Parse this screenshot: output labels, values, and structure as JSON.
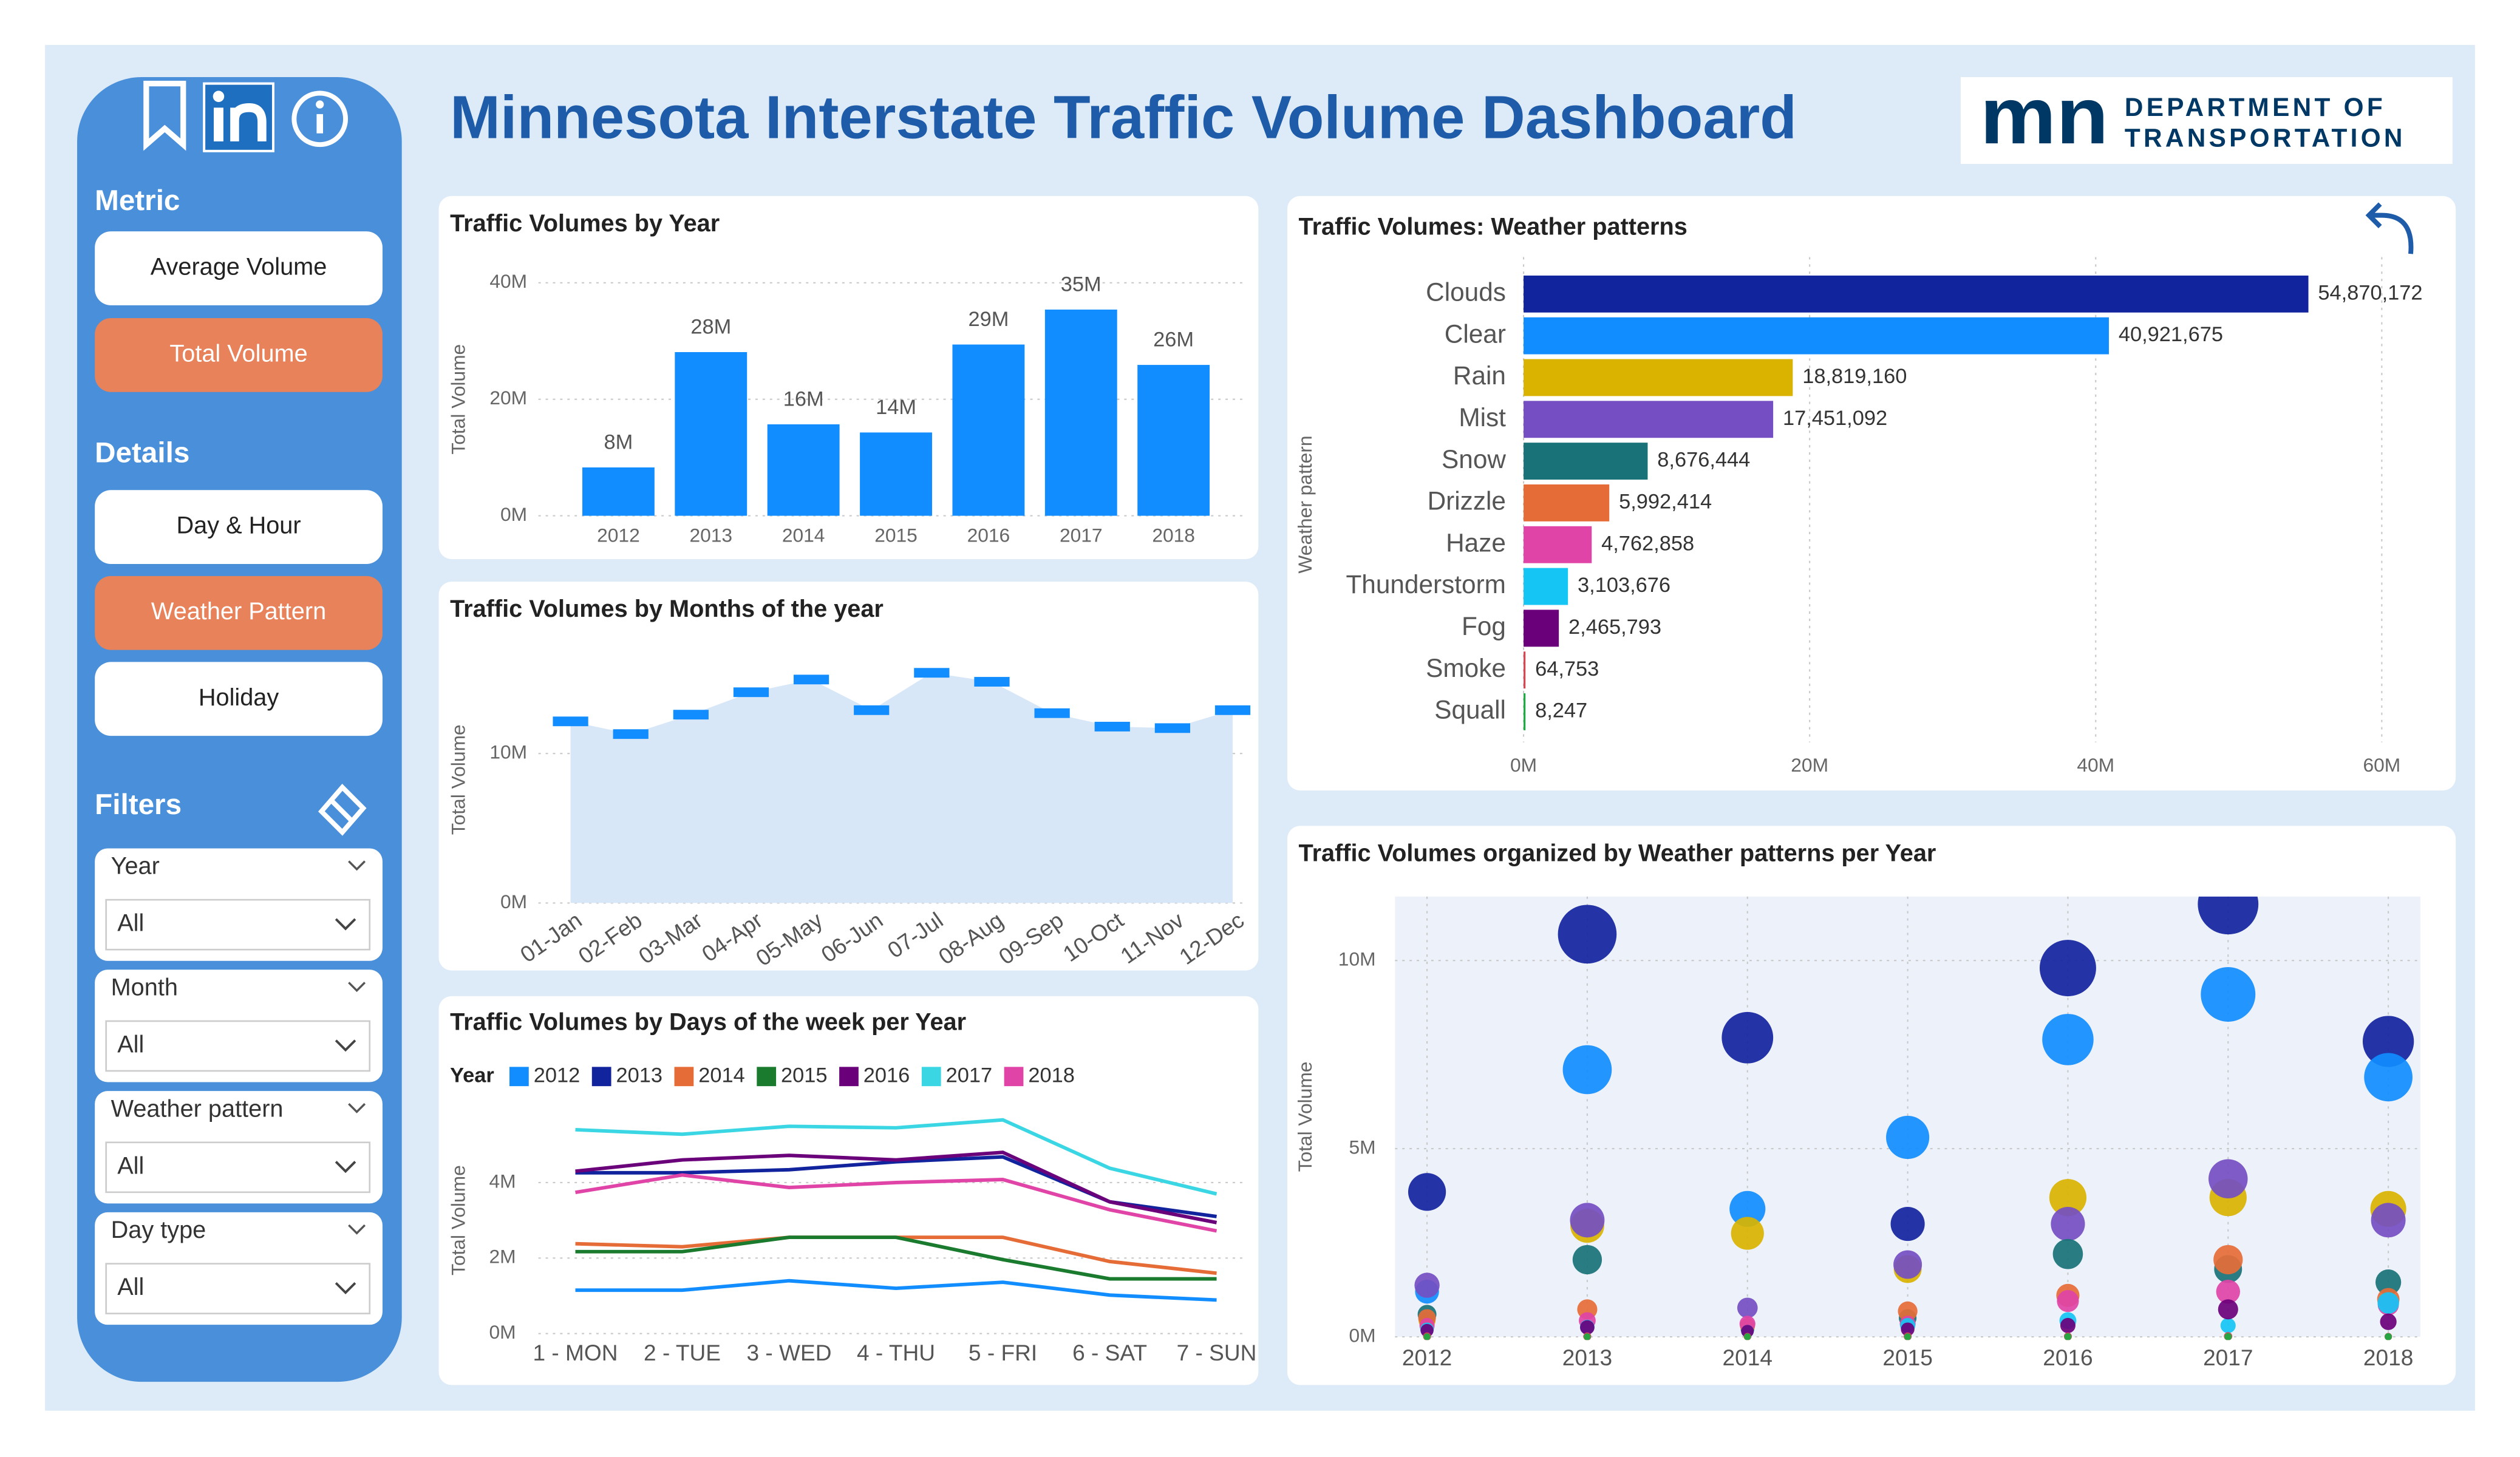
{
  "header": {
    "title": "Minnesota Interstate Traffic Volume Dashboard",
    "logo": {
      "mark": "mn",
      "line1": "DEPARTMENT OF",
      "line2": "TRANSPORTATION"
    }
  },
  "sidebar": {
    "metric": {
      "title": "Metric",
      "options": [
        "Average Volume",
        "Total Volume"
      ],
      "selected": 1
    },
    "details": {
      "title": "Details",
      "options": [
        "Day & Hour",
        "Weather Pattern",
        "Holiday"
      ],
      "selected": 1
    },
    "filters": {
      "title": "Filters",
      "slicers": [
        {
          "label": "Year",
          "value": "All"
        },
        {
          "label": "Month",
          "value": "All"
        },
        {
          "label": "Weather pattern",
          "value": "All"
        },
        {
          "label": "Day type",
          "value": "All"
        }
      ]
    }
  },
  "chart_data": [
    {
      "type": "bar",
      "title": "Traffic Volumes by Year",
      "y_label": "Total Volume",
      "categories": [
        "2012",
        "2013",
        "2014",
        "2015",
        "2016",
        "2017",
        "2018"
      ],
      "values": [
        8300000,
        28100000,
        15700000,
        14300000,
        29400000,
        35400000,
        25900000
      ],
      "value_labels": [
        "8M",
        "28M",
        "16M",
        "14M",
        "29M",
        "35M",
        "26M"
      ],
      "color": "#118DFF",
      "ylim": [
        0,
        40000000
      ],
      "yticks": [
        {
          "value": 0,
          "label": "0M"
        },
        {
          "value": 20000000,
          "label": "20M"
        },
        {
          "value": 40000000,
          "label": "40M"
        }
      ],
      "grid": true
    },
    {
      "type": "area",
      "title": "Traffic Volumes by Months of the year",
      "y_label": "Total Volume",
      "categories": [
        "01-Jan",
        "02-Feb",
        "03-Mar",
        "04-Apr",
        "05-May",
        "06-Jun",
        "07-Jul",
        "08-Aug",
        "09-Sep",
        "10-Oct",
        "11-Nov",
        "12-Dec"
      ],
      "values": [
        12150000,
        11300000,
        12600000,
        14100000,
        14950000,
        12900000,
        15400000,
        14800000,
        12700000,
        11800000,
        11700000,
        12900000
      ],
      "color": "#118DFF",
      "ylim": [
        0,
        16500000
      ],
      "yticks": [
        {
          "value": 0,
          "label": "0M"
        },
        {
          "value": 10000000,
          "label": "10M"
        }
      ],
      "grid": true
    },
    {
      "type": "line",
      "title": "Traffic Volumes by Days of the week per Year",
      "y_label": "Total Volume",
      "legend_title": "Year",
      "categories": [
        "1 - MON",
        "2 - TUE",
        "3 - WED",
        "4 - THU",
        "5 - FRI",
        "6 - SAT",
        "7 - SUN"
      ],
      "series": [
        {
          "name": "2012",
          "color": "#118DFF",
          "values": [
            1150000,
            1150000,
            1400000,
            1200000,
            1360000,
            1020000,
            890000
          ]
        },
        {
          "name": "2013",
          "color": "#12239E",
          "values": [
            4260000,
            4260000,
            4340000,
            4550000,
            4680000,
            3490000,
            3100000
          ]
        },
        {
          "name": "2014",
          "color": "#E66C37",
          "values": [
            2380000,
            2300000,
            2550000,
            2550000,
            2550000,
            1910000,
            1600000
          ]
        },
        {
          "name": "2015",
          "color": "#1A7A2E",
          "values": [
            2170000,
            2170000,
            2550000,
            2550000,
            1960000,
            1450000,
            1450000
          ]
        },
        {
          "name": "2016",
          "color": "#6B007B",
          "values": [
            4300000,
            4600000,
            4720000,
            4600000,
            4800000,
            3490000,
            2940000
          ]
        },
        {
          "name": "2017",
          "color": "#3BD6E3",
          "values": [
            5400000,
            5280000,
            5490000,
            5450000,
            5660000,
            4380000,
            3700000
          ]
        },
        {
          "name": "2018",
          "color": "#E044A7",
          "values": [
            3740000,
            4200000,
            3870000,
            4000000,
            4080000,
            3280000,
            2720000
          ]
        }
      ],
      "ylim": [
        0,
        6000000
      ],
      "yticks": [
        {
          "value": 0,
          "label": "0M"
        },
        {
          "value": 2000000,
          "label": "2M"
        },
        {
          "value": 4000000,
          "label": "4M"
        }
      ],
      "grid": true
    },
    {
      "type": "hbar",
      "title": "Traffic Volumes: Weather patterns",
      "y_label": "Weather pattern",
      "categories": [
        "Clouds",
        "Clear",
        "Rain",
        "Mist",
        "Snow",
        "Drizzle",
        "Haze",
        "Thunderstorm",
        "Fog",
        "Smoke",
        "Squall"
      ],
      "values": [
        54870172,
        40921675,
        18819160,
        17451092,
        8676444,
        5992414,
        4762858,
        3103676,
        2465793,
        64753,
        8247
      ],
      "value_labels": [
        "54,870,172",
        "40,921,675",
        "18,819,160",
        "17,451,092",
        "8,676,444",
        "5,992,414",
        "4,762,858",
        "3,103,676",
        "2,465,793",
        "64,753",
        "8,247"
      ],
      "colors": [
        "#12239E",
        "#118DFF",
        "#D9B300",
        "#744EC2",
        "#197278",
        "#E66C37",
        "#E044A7",
        "#15C6F4",
        "#6B007B",
        "#D64550",
        "#1AAB40"
      ],
      "xlim": [
        0,
        60000000
      ],
      "xticks": [
        {
          "value": 0,
          "label": "0M"
        },
        {
          "value": 20000000,
          "label": "20M"
        },
        {
          "value": 40000000,
          "label": "40M"
        },
        {
          "value": 60000000,
          "label": "60M"
        }
      ],
      "grid": true
    },
    {
      "type": "scatter",
      "title": "Traffic Volumes organized by Weather patterns per Year",
      "y_label": "Total Volume",
      "x": [
        2012,
        2013,
        2014,
        2015,
        2016,
        2017,
        2018
      ],
      "series": [
        {
          "color": "#12239E",
          "values": [
            3850000,
            10700000,
            7950000,
            3000000,
            9800000,
            11500000,
            7850000
          ]
        },
        {
          "color": "#118DFF",
          "values": [
            1200000,
            7100000,
            3400000,
            5300000,
            7900000,
            9100000,
            6900000
          ]
        },
        {
          "color": "#D9B300",
          "values": [
            430000,
            2950000,
            2750000,
            1800000,
            3700000,
            3700000,
            3400000
          ]
        },
        {
          "color": "#744EC2",
          "values": [
            1370000,
            3100000,
            770000,
            1920000,
            3000000,
            4200000,
            3100000
          ]
        },
        {
          "color": "#197278",
          "values": [
            600000,
            2050000,
            200000,
            500000,
            2200000,
            1800000,
            1450000
          ]
        },
        {
          "color": "#E66C37",
          "values": [
            500000,
            730000,
            300000,
            680000,
            1100000,
            2050000,
            1000000
          ]
        },
        {
          "color": "#E044A7",
          "values": [
            300000,
            430000,
            350000,
            350000,
            950000,
            1200000,
            850000
          ]
        },
        {
          "color": "#15C6F4",
          "values": [
            200000,
            260000,
            150000,
            300000,
            430000,
            300000,
            900000
          ]
        },
        {
          "color": "#6B007B",
          "values": [
            170000,
            250000,
            150000,
            200000,
            300000,
            730000,
            400000
          ]
        },
        {
          "color": "#D64550",
          "values": [
            10000,
            10000,
            5000,
            10000,
            10000,
            15000,
            5000
          ]
        },
        {
          "color": "#1AAB40",
          "values": [
            500,
            800,
            500,
            600,
            2000,
            3000,
            2000
          ]
        }
      ],
      "xlim": [
        2011.8,
        2018.2
      ],
      "xticks": [
        2012,
        2013,
        2014,
        2015,
        2016,
        2017,
        2018
      ],
      "ylim": [
        0,
        11700000
      ],
      "yticks": [
        {
          "value": 0,
          "label": "0M"
        },
        {
          "value": 5000000,
          "label": "5M"
        },
        {
          "value": 10000000,
          "label": "10M"
        }
      ],
      "grid": true
    }
  ]
}
